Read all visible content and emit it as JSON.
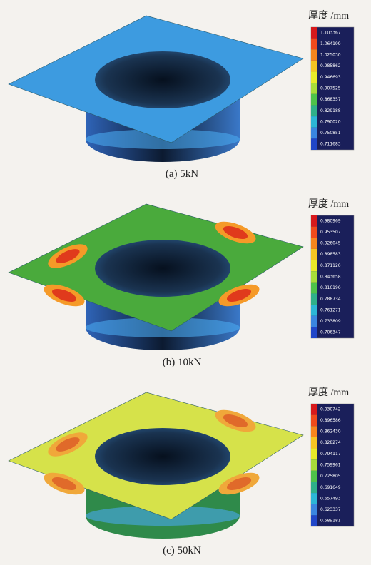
{
  "figures": [
    {
      "caption": "(a) 5kN",
      "legend": {
        "title": "厚度 /mm",
        "labels": [
          "1.103367",
          "1.064199",
          "1.025030",
          "0.985862",
          "0.946693",
          "0.907525",
          "0.868357",
          "0.829188",
          "0.790020",
          "0.750851",
          "0.711683"
        ]
      }
    },
    {
      "caption": "(b) 10kN",
      "legend": {
        "title": "厚度 /mm",
        "labels": [
          "0.980969",
          "0.953507",
          "0.926045",
          "0.898583",
          "0.871120",
          "0.843658",
          "0.816196",
          "0.788734",
          "0.761271",
          "0.733809",
          "0.706347"
        ]
      }
    },
    {
      "caption": "(c) 50kN",
      "legend": {
        "title": "厚度 /mm",
        "labels": [
          "0.930742",
          "0.896586",
          "0.862430",
          "0.828274",
          "0.794117",
          "0.759961",
          "0.725805",
          "0.691649",
          "0.657493",
          "0.623337",
          "0.589181"
        ]
      }
    }
  ]
}
